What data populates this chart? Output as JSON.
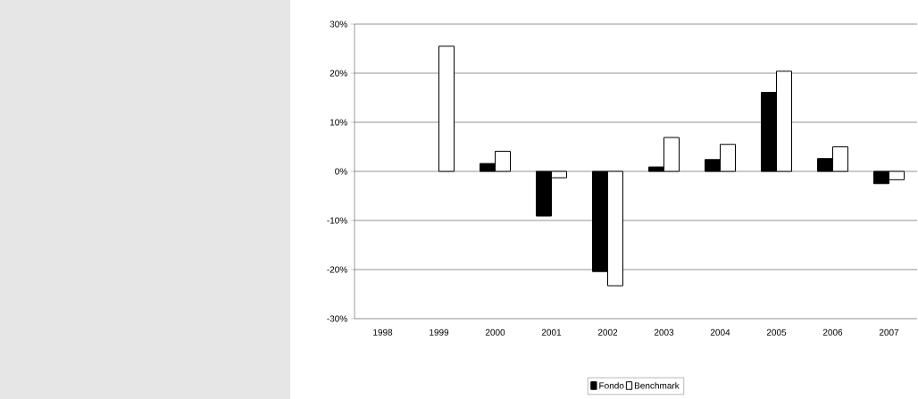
{
  "chart_data": {
    "type": "bar",
    "categories": [
      "1998",
      "1999",
      "2000",
      "2001",
      "2002",
      "2003",
      "2004",
      "2005",
      "2006",
      "2007"
    ],
    "series": [
      {
        "name": "Fondo",
        "color": "#000000",
        "values": [
          null,
          null,
          1.6,
          -9.1,
          -20.4,
          0.9,
          2.4,
          16.1,
          2.6,
          -2.5
        ]
      },
      {
        "name": "Benchmark",
        "color": "#ffffff",
        "values": [
          null,
          25.5,
          4.1,
          -1.3,
          -23.3,
          6.9,
          5.5,
          20.4,
          5.0,
          -1.7
        ]
      }
    ],
    "ylim": [
      -30,
      30
    ],
    "yticks": [
      {
        "value": -30,
        "label": "-30%"
      },
      {
        "value": -20,
        "label": "-20%"
      },
      {
        "value": -10,
        "label": "-10%"
      },
      {
        "value": 0,
        "label": "0%"
      },
      {
        "value": 10,
        "label": "10%"
      },
      {
        "value": 20,
        "label": "20%"
      },
      {
        "value": 30,
        "label": "30%"
      }
    ],
    "grid": "y",
    "legend": "bottom"
  }
}
